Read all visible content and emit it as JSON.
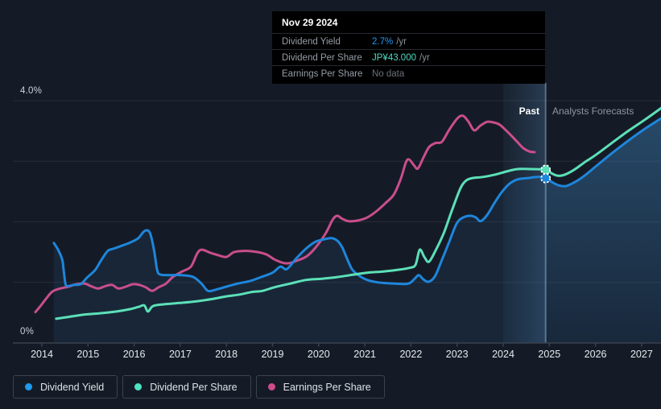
{
  "page": {
    "background": "#151B26"
  },
  "tooltip": {
    "date": "Nov 29 2024",
    "rows": [
      {
        "label": "Dividend Yield",
        "value": "2.7%",
        "suffix": "/yr",
        "value_color": "#2196F3"
      },
      {
        "label": "Dividend Per Share",
        "value": "JP¥43.000",
        "suffix": "/yr",
        "value_color": "#4DD9C0"
      },
      {
        "label": "Earnings Per Share",
        "value": "No data",
        "suffix": "",
        "value_color": "#697077"
      }
    ]
  },
  "labels": {
    "past": "Past",
    "forecast": "Analysts Forecasts",
    "y_top": "4.0%",
    "y_bottom": "0%"
  },
  "legend": {
    "items": [
      {
        "label": "Dividend Yield",
        "color": "#1E9BF0"
      },
      {
        "label": "Dividend Per Share",
        "color": "#4FE3C1"
      },
      {
        "label": "Earnings Per Share",
        "color": "#CE4B8C"
      }
    ]
  },
  "chart_data": {
    "type": "line",
    "title": "Dividend history and forecast",
    "x_ticks": [
      "2014",
      "2015",
      "2016",
      "2017",
      "2018",
      "2019",
      "2020",
      "2021",
      "2022",
      "2023",
      "2024",
      "2025",
      "2026",
      "2027"
    ],
    "x_range": [
      2013.37,
      2027.43
    ],
    "y_range": [
      0,
      4
    ],
    "y_unit": "%",
    "y_gridlines": [
      1,
      2,
      3,
      4
    ],
    "divider_x": 2024.92,
    "divider_date": "Nov 29 2024",
    "highlight_band": [
      2024.0,
      2024.92
    ],
    "legend_position": "bottom-left",
    "series": [
      {
        "name": "Dividend Yield",
        "color": "#1E86DB",
        "area": true,
        "points": [
          [
            2014.26,
            1.65
          ],
          [
            2014.35,
            1.54
          ],
          [
            2014.44,
            1.38
          ],
          [
            2014.47,
            1.22
          ],
          [
            2014.51,
            0.98
          ],
          [
            2014.56,
            0.94
          ],
          [
            2014.7,
            0.96
          ],
          [
            2014.84,
            0.97
          ],
          [
            2014.98,
            1.08
          ],
          [
            2015.15,
            1.2
          ],
          [
            2015.29,
            1.37
          ],
          [
            2015.43,
            1.52
          ],
          [
            2015.57,
            1.56
          ],
          [
            2015.75,
            1.61
          ],
          [
            2015.92,
            1.66
          ],
          [
            2016.09,
            1.73
          ],
          [
            2016.23,
            1.85
          ],
          [
            2016.34,
            1.82
          ],
          [
            2016.43,
            1.54
          ],
          [
            2016.5,
            1.2
          ],
          [
            2016.57,
            1.13
          ],
          [
            2016.76,
            1.12
          ],
          [
            2017.02,
            1.12
          ],
          [
            2017.28,
            1.09
          ],
          [
            2017.46,
            0.98
          ],
          [
            2017.6,
            0.86
          ],
          [
            2017.77,
            0.88
          ],
          [
            2018.0,
            0.93
          ],
          [
            2018.24,
            0.98
          ],
          [
            2018.5,
            1.02
          ],
          [
            2018.76,
            1.09
          ],
          [
            2019.0,
            1.16
          ],
          [
            2019.17,
            1.26
          ],
          [
            2019.31,
            1.22
          ],
          [
            2019.52,
            1.4
          ],
          [
            2019.73,
            1.56
          ],
          [
            2019.93,
            1.67
          ],
          [
            2020.11,
            1.71
          ],
          [
            2020.28,
            1.73
          ],
          [
            2020.4,
            1.69
          ],
          [
            2020.51,
            1.58
          ],
          [
            2020.61,
            1.4
          ],
          [
            2020.72,
            1.22
          ],
          [
            2020.86,
            1.12
          ],
          [
            2021.05,
            1.04
          ],
          [
            2021.29,
            1.0
          ],
          [
            2021.64,
            0.98
          ],
          [
            2021.94,
            0.98
          ],
          [
            2022.08,
            1.06
          ],
          [
            2022.17,
            1.12
          ],
          [
            2022.27,
            1.05
          ],
          [
            2022.38,
            1.01
          ],
          [
            2022.52,
            1.1
          ],
          [
            2022.67,
            1.37
          ],
          [
            2022.83,
            1.67
          ],
          [
            2022.99,
            1.97
          ],
          [
            2023.13,
            2.07
          ],
          [
            2023.29,
            2.1
          ],
          [
            2023.41,
            2.07
          ],
          [
            2023.51,
            2.01
          ],
          [
            2023.65,
            2.11
          ],
          [
            2023.81,
            2.31
          ],
          [
            2023.97,
            2.49
          ],
          [
            2024.14,
            2.63
          ],
          [
            2024.31,
            2.7
          ],
          [
            2024.52,
            2.72
          ],
          [
            2024.75,
            2.74
          ],
          [
            2024.92,
            2.72
          ],
          [
            2025.07,
            2.65
          ],
          [
            2025.21,
            2.6
          ],
          [
            2025.36,
            2.59
          ],
          [
            2025.54,
            2.65
          ],
          [
            2025.76,
            2.76
          ],
          [
            2026.0,
            2.91
          ],
          [
            2026.37,
            3.14
          ],
          [
            2026.73,
            3.35
          ],
          [
            2027.08,
            3.54
          ],
          [
            2027.43,
            3.71
          ]
        ]
      },
      {
        "name": "Dividend Per Share",
        "color": "#5CE0B8",
        "area": false,
        "points": [
          [
            2014.31,
            0.4
          ],
          [
            2014.58,
            0.43
          ],
          [
            2014.93,
            0.47
          ],
          [
            2015.27,
            0.49
          ],
          [
            2015.62,
            0.52
          ],
          [
            2015.92,
            0.56
          ],
          [
            2016.11,
            0.6
          ],
          [
            2016.22,
            0.62
          ],
          [
            2016.3,
            0.52
          ],
          [
            2016.41,
            0.61
          ],
          [
            2016.67,
            0.64
          ],
          [
            2016.98,
            0.66
          ],
          [
            2017.37,
            0.69
          ],
          [
            2017.72,
            0.73
          ],
          [
            2018.0,
            0.77
          ],
          [
            2018.29,
            0.8
          ],
          [
            2018.54,
            0.84
          ],
          [
            2018.78,
            0.86
          ],
          [
            2019.04,
            0.92
          ],
          [
            2019.38,
            0.98
          ],
          [
            2019.73,
            1.04
          ],
          [
            2020.07,
            1.06
          ],
          [
            2020.42,
            1.09
          ],
          [
            2020.77,
            1.13
          ],
          [
            2021.05,
            1.16
          ],
          [
            2021.4,
            1.18
          ],
          [
            2021.75,
            1.21
          ],
          [
            2021.97,
            1.24
          ],
          [
            2022.1,
            1.29
          ],
          [
            2022.19,
            1.54
          ],
          [
            2022.29,
            1.42
          ],
          [
            2022.39,
            1.34
          ],
          [
            2022.53,
            1.52
          ],
          [
            2022.71,
            1.81
          ],
          [
            2022.88,
            2.17
          ],
          [
            2023.06,
            2.53
          ],
          [
            2023.18,
            2.67
          ],
          [
            2023.32,
            2.72
          ],
          [
            2023.56,
            2.74
          ],
          [
            2023.83,
            2.78
          ],
          [
            2024.07,
            2.83
          ],
          [
            2024.31,
            2.87
          ],
          [
            2024.61,
            2.87
          ],
          [
            2024.92,
            2.86
          ],
          [
            2025.05,
            2.8
          ],
          [
            2025.19,
            2.76
          ],
          [
            2025.34,
            2.78
          ],
          [
            2025.54,
            2.86
          ],
          [
            2025.76,
            2.98
          ],
          [
            2026.0,
            3.1
          ],
          [
            2026.37,
            3.31
          ],
          [
            2026.73,
            3.51
          ],
          [
            2027.08,
            3.69
          ],
          [
            2027.43,
            3.88
          ]
        ]
      },
      {
        "name": "Earnings Per Share",
        "color": "#C94E8C",
        "area": false,
        "points": [
          [
            2013.86,
            0.51
          ],
          [
            2013.97,
            0.61
          ],
          [
            2014.09,
            0.73
          ],
          [
            2014.23,
            0.85
          ],
          [
            2014.4,
            0.9
          ],
          [
            2014.58,
            0.93
          ],
          [
            2014.75,
            0.97
          ],
          [
            2014.93,
            0.98
          ],
          [
            2015.06,
            0.94
          ],
          [
            2015.22,
            0.9
          ],
          [
            2015.38,
            0.94
          ],
          [
            2015.52,
            0.96
          ],
          [
            2015.66,
            0.9
          ],
          [
            2015.82,
            0.93
          ],
          [
            2015.97,
            0.97
          ],
          [
            2016.11,
            0.96
          ],
          [
            2016.25,
            0.92
          ],
          [
            2016.39,
            0.86
          ],
          [
            2016.53,
            0.92
          ],
          [
            2016.69,
            0.98
          ],
          [
            2016.84,
            1.09
          ],
          [
            2017.04,
            1.18
          ],
          [
            2017.23,
            1.26
          ],
          [
            2017.37,
            1.48
          ],
          [
            2017.47,
            1.54
          ],
          [
            2017.65,
            1.49
          ],
          [
            2017.82,
            1.45
          ],
          [
            2018.0,
            1.42
          ],
          [
            2018.17,
            1.5
          ],
          [
            2018.43,
            1.52
          ],
          [
            2018.68,
            1.5
          ],
          [
            2018.87,
            1.46
          ],
          [
            2019.04,
            1.38
          ],
          [
            2019.24,
            1.32
          ],
          [
            2019.38,
            1.32
          ],
          [
            2019.57,
            1.37
          ],
          [
            2019.76,
            1.44
          ],
          [
            2019.97,
            1.61
          ],
          [
            2020.16,
            1.82
          ],
          [
            2020.3,
            2.03
          ],
          [
            2020.4,
            2.1
          ],
          [
            2020.51,
            2.05
          ],
          [
            2020.65,
            2.01
          ],
          [
            2020.84,
            2.02
          ],
          [
            2021.05,
            2.07
          ],
          [
            2021.26,
            2.18
          ],
          [
            2021.45,
            2.31
          ],
          [
            2021.63,
            2.45
          ],
          [
            2021.78,
            2.71
          ],
          [
            2021.89,
            2.98
          ],
          [
            2021.96,
            3.03
          ],
          [
            2022.06,
            2.94
          ],
          [
            2022.15,
            2.88
          ],
          [
            2022.27,
            3.06
          ],
          [
            2022.39,
            3.23
          ],
          [
            2022.53,
            3.3
          ],
          [
            2022.67,
            3.32
          ],
          [
            2022.83,
            3.52
          ],
          [
            2023.01,
            3.71
          ],
          [
            2023.13,
            3.75
          ],
          [
            2023.25,
            3.65
          ],
          [
            2023.37,
            3.51
          ],
          [
            2023.51,
            3.59
          ],
          [
            2023.65,
            3.65
          ],
          [
            2023.79,
            3.64
          ],
          [
            2023.93,
            3.6
          ],
          [
            2024.1,
            3.48
          ],
          [
            2024.28,
            3.34
          ],
          [
            2024.43,
            3.22
          ],
          [
            2024.57,
            3.16
          ],
          [
            2024.68,
            3.15
          ]
        ]
      }
    ],
    "markers": [
      {
        "x": 2024.92,
        "y": 2.86,
        "color": "#5CE0B8",
        "series": "Dividend Per Share"
      },
      {
        "x": 2024.92,
        "y": 2.72,
        "color": "#1E86DB",
        "series": "Dividend Yield"
      }
    ]
  }
}
